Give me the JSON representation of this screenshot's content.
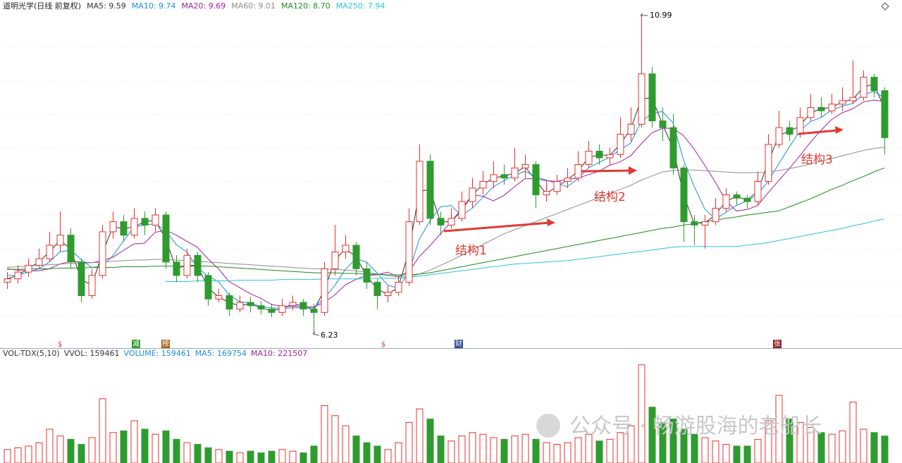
{
  "chart_data": {
    "type": "candlestick",
    "title": "道明光学(日线 前复权)",
    "ylim": [
      6.04,
      11.01
    ],
    "gridlines": [
      6.5,
      7,
      7.5,
      8,
      8.5,
      9,
      9.5,
      10,
      10.5
    ],
    "open": [
      7.0,
      7.05,
      7.15,
      7.25,
      7.35,
      7.55,
      7.7,
      7.3,
      6.8,
      7.1,
      7.75,
      7.9,
      7.7,
      7.95,
      7.85,
      8.0,
      7.3,
      7.1,
      7.4,
      7.1,
      6.75,
      6.8,
      6.6,
      6.7,
      6.65,
      6.6,
      6.55,
      6.65,
      6.7,
      6.6,
      6.55,
      7.2,
      7.45,
      7.55,
      7.2,
      7.0,
      6.8,
      6.85,
      7.0,
      7.9,
      8.8,
      7.95,
      7.85,
      7.95,
      8.2,
      8.4,
      8.5,
      8.6,
      8.55,
      8.7,
      8.75,
      8.3,
      8.35,
      8.5,
      8.55,
      8.75,
      8.95,
      8.85,
      8.9,
      9.2,
      9.35,
      10.1,
      9.4,
      9.3,
      8.7,
      7.9,
      7.85,
      7.9,
      8.1,
      8.3,
      8.25,
      8.2,
      8.5,
      9.05,
      9.3,
      9.2,
      9.45,
      9.6,
      9.55,
      9.65,
      9.7,
      9.75,
      10.05,
      9.85
    ],
    "high": [
      7.15,
      7.25,
      7.35,
      7.5,
      7.75,
      8.05,
      7.8,
      7.35,
      7.2,
      7.85,
      8.05,
      8.0,
      8.1,
      8.05,
      8.1,
      8.05,
      7.4,
      7.5,
      7.45,
      7.15,
      6.9,
      6.85,
      6.8,
      6.78,
      6.72,
      6.68,
      6.75,
      6.8,
      6.75,
      6.68,
      7.3,
      7.85,
      7.7,
      7.6,
      7.3,
      7.05,
      6.95,
      7.1,
      8.1,
      9.05,
      8.9,
      8.05,
      8.1,
      8.35,
      8.55,
      8.65,
      8.8,
      8.75,
      9.0,
      8.9,
      8.8,
      8.5,
      8.6,
      8.7,
      8.95,
      9.1,
      9.05,
      9.0,
      9.45,
      9.6,
      10.99,
      10.2,
      9.6,
      9.5,
      8.75,
      8.0,
      8.0,
      8.25,
      8.4,
      8.35,
      8.3,
      8.65,
      9.2,
      9.55,
      9.4,
      9.6,
      9.8,
      9.75,
      9.8,
      9.9,
      10.3,
      10.15,
      10.1,
      9.9
    ],
    "low": [
      6.9,
      6.98,
      7.08,
      7.2,
      7.3,
      7.45,
      7.2,
      6.7,
      6.75,
      7.05,
      7.65,
      7.6,
      7.65,
      7.7,
      7.75,
      7.2,
      7.0,
      7.05,
      7.0,
      6.65,
      6.7,
      6.5,
      6.55,
      6.55,
      6.52,
      6.48,
      6.5,
      6.58,
      6.5,
      6.23,
      6.5,
      7.1,
      7.35,
      7.1,
      6.9,
      6.6,
      6.7,
      6.8,
      6.95,
      7.85,
      7.85,
      7.7,
      7.8,
      7.9,
      8.1,
      8.3,
      8.4,
      8.45,
      8.5,
      8.55,
      8.1,
      8.2,
      8.3,
      8.4,
      8.5,
      8.7,
      8.75,
      8.75,
      8.85,
      9.1,
      9.3,
      9.3,
      9.1,
      8.6,
      7.6,
      7.55,
      7.5,
      7.85,
      8.05,
      8.15,
      8.1,
      8.15,
      8.45,
      9.0,
      9.1,
      9.15,
      9.4,
      9.45,
      9.5,
      9.55,
      9.65,
      9.7,
      9.75,
      8.9
    ],
    "close": [
      7.05,
      7.15,
      7.25,
      7.35,
      7.55,
      7.7,
      7.3,
      6.8,
      7.1,
      7.75,
      7.9,
      7.7,
      7.95,
      7.85,
      8.0,
      7.3,
      7.1,
      7.4,
      7.1,
      6.75,
      6.8,
      6.6,
      6.7,
      6.65,
      6.6,
      6.55,
      6.65,
      6.7,
      6.6,
      6.55,
      7.2,
      7.45,
      7.55,
      7.2,
      7.0,
      6.8,
      6.85,
      7.0,
      7.9,
      8.8,
      7.95,
      7.85,
      7.95,
      8.2,
      8.4,
      8.5,
      8.6,
      8.55,
      8.7,
      8.75,
      8.3,
      8.35,
      8.5,
      8.55,
      8.75,
      8.95,
      8.85,
      8.9,
      9.2,
      9.35,
      10.1,
      9.4,
      9.3,
      8.7,
      7.9,
      7.85,
      7.9,
      8.1,
      8.3,
      8.25,
      8.2,
      8.5,
      9.05,
      9.3,
      9.2,
      9.45,
      9.6,
      9.55,
      9.65,
      9.7,
      9.75,
      10.05,
      9.85,
      9.15
    ],
    "up_color": "#e8302f",
    "down_color": "#2e9b2e",
    "series": [
      {
        "name": "MA5: 9.59",
        "color": "#333333",
        "values": [
          7.05,
          7.1,
          7.2,
          7.3,
          7.45,
          7.62,
          7.5,
          7.05,
          6.95,
          7.42,
          7.82,
          7.8,
          7.82,
          7.9,
          7.92,
          7.65,
          7.2,
          7.25,
          7.25,
          6.92,
          6.78,
          6.7,
          6.65,
          6.68,
          6.62,
          6.58,
          6.6,
          6.68,
          6.65,
          6.58,
          6.88,
          7.32,
          7.5,
          7.38,
          7.1,
          6.9,
          6.82,
          6.92,
          7.45,
          8.35,
          8.38,
          7.9,
          7.9,
          8.08,
          8.3,
          8.45,
          8.55,
          8.58,
          8.62,
          8.72,
          8.52,
          8.32,
          8.42,
          8.52,
          8.65,
          8.85,
          8.9,
          8.88,
          9.05,
          9.28,
          9.72,
          9.75,
          9.35,
          9.0,
          8.3,
          7.88,
          7.88,
          8.0,
          8.2,
          8.28,
          8.22,
          8.35,
          8.78,
          9.18,
          9.25,
          9.32,
          9.52,
          9.58,
          9.6,
          9.68,
          9.72,
          9.9,
          9.95,
          9.59
        ]
      },
      {
        "name": "MA10: 9.74",
        "color": "#1a8fd6",
        "values": [
          7.1,
          7.1,
          7.15,
          7.2,
          7.3,
          7.45,
          7.48,
          7.34,
          7.22,
          7.24,
          7.39,
          7.61,
          7.82,
          7.85,
          7.87,
          7.77,
          7.56,
          7.45,
          7.22,
          7.09,
          7.01,
          6.81,
          6.71,
          6.69,
          6.64,
          6.62,
          6.61,
          6.62,
          6.62,
          6.62,
          6.76,
          6.95,
          7.19,
          7.35,
          7.3,
          7.14,
          6.96,
          6.91,
          7.14,
          7.64,
          7.91,
          8.12,
          8.14,
          7.99,
          8.1,
          8.26,
          8.42,
          8.51,
          8.59,
          8.65,
          8.57,
          8.52,
          8.47,
          8.42,
          8.54,
          8.7,
          8.78,
          8.86,
          8.97,
          9.07,
          9.39,
          9.51,
          9.54,
          9.37,
          8.82,
          8.43,
          8.09,
          7.94,
          8.04,
          8.14,
          8.21,
          8.31,
          8.5,
          8.76,
          9.01,
          9.25,
          9.39,
          9.45,
          9.56,
          9.62,
          9.66,
          9.79,
          9.84,
          9.74
        ]
      },
      {
        "name": "MA20: 9.69",
        "color": "#a0229e",
        "values": [
          7.2,
          7.18,
          7.17,
          7.17,
          7.2,
          7.27,
          7.31,
          7.3,
          7.29,
          7.32,
          7.37,
          7.47,
          7.57,
          7.58,
          7.74,
          7.78,
          7.7,
          7.61,
          7.52,
          7.35,
          7.2,
          7.01,
          6.92,
          6.83,
          6.76,
          6.67,
          6.64,
          6.64,
          6.64,
          6.63,
          6.7,
          6.81,
          6.96,
          7.04,
          7.1,
          7.11,
          7.15,
          7.08,
          7.16,
          7.38,
          7.54,
          7.72,
          7.9,
          8.06,
          8.3,
          8.28,
          8.21,
          8.29,
          8.42,
          8.54,
          8.54,
          8.51,
          8.5,
          8.53,
          8.55,
          8.6,
          8.65,
          8.74,
          8.79,
          8.88,
          9.06,
          9.22,
          9.29,
          9.29,
          9.18,
          8.98,
          8.74,
          8.49,
          8.21,
          8.06,
          8.08,
          8.14,
          8.33,
          8.51,
          8.69,
          8.88,
          9.08,
          9.26,
          9.42,
          9.52,
          9.58,
          9.68,
          9.71,
          9.69
        ]
      },
      {
        "name": "MA60: 9.01",
        "color": "#8c8c8c",
        "values": [
          7.22,
          7.23,
          7.24,
          7.25,
          7.26,
          7.27,
          7.28,
          7.28,
          7.29,
          7.3,
          7.31,
          7.32,
          7.33,
          7.33,
          7.34,
          7.34,
          7.33,
          7.32,
          7.31,
          7.3,
          7.29,
          7.28,
          7.27,
          7.26,
          7.25,
          7.24,
          7.23,
          7.22,
          7.21,
          7.2,
          7.2,
          7.19,
          7.18,
          7.17,
          7.15,
          7.12,
          7.1,
          7.08,
          7.08,
          7.12,
          7.18,
          7.25,
          7.32,
          7.4,
          7.48,
          7.56,
          7.64,
          7.72,
          7.78,
          7.84,
          7.9,
          7.96,
          8.02,
          8.08,
          8.14,
          8.2,
          8.26,
          8.32,
          8.38,
          8.44,
          8.52,
          8.58,
          8.64,
          8.66,
          8.67,
          8.67,
          8.66,
          8.65,
          8.64,
          8.63,
          8.63,
          8.63,
          8.64,
          8.66,
          8.69,
          8.72,
          8.76,
          8.8,
          8.84,
          8.88,
          8.92,
          8.96,
          8.99,
          9.01
        ]
      },
      {
        "name": "MA120: 8.70",
        "color": "#1f8a1f",
        "values": [
          7.19,
          7.19,
          7.2,
          7.2,
          7.2,
          7.21,
          7.21,
          7.21,
          7.22,
          7.22,
          7.22,
          7.23,
          7.23,
          7.23,
          7.24,
          7.24,
          7.24,
          7.24,
          7.24,
          7.24,
          7.23,
          7.22,
          7.21,
          7.2,
          7.19,
          7.18,
          7.17,
          7.16,
          7.15,
          7.14,
          7.14,
          7.14,
          7.13,
          7.13,
          7.12,
          7.12,
          7.11,
          7.11,
          7.11,
          7.12,
          7.14,
          7.17,
          7.2,
          7.23,
          7.26,
          7.29,
          7.32,
          7.35,
          7.38,
          7.41,
          7.44,
          7.47,
          7.5,
          7.53,
          7.56,
          7.59,
          7.62,
          7.65,
          7.68,
          7.71,
          7.74,
          7.77,
          7.8,
          7.82,
          7.85,
          7.87,
          7.9,
          7.92,
          7.95,
          7.97,
          8.0,
          8.02,
          8.04,
          8.06,
          8.12,
          8.18,
          8.24,
          8.31,
          8.38,
          8.44,
          8.51,
          8.57,
          8.64,
          8.7
        ]
      },
      {
        "name": "MA250: 7.94",
        "color": "#2cc5d8",
        "values": [
          null,
          null,
          null,
          null,
          null,
          null,
          null,
          null,
          null,
          null,
          null,
          null,
          null,
          null,
          null,
          7.01,
          7.01,
          7.01,
          7.02,
          7.02,
          7.02,
          7.02,
          7.03,
          7.03,
          7.03,
          7.03,
          7.04,
          7.04,
          7.04,
          7.04,
          7.05,
          7.05,
          7.05,
          7.05,
          7.05,
          7.06,
          7.06,
          7.06,
          7.07,
          7.09,
          7.11,
          7.13,
          7.15,
          7.17,
          7.19,
          7.21,
          7.23,
          7.25,
          7.27,
          7.28,
          7.29,
          7.3,
          7.31,
          7.32,
          7.34,
          7.36,
          7.38,
          7.4,
          7.42,
          7.44,
          7.46,
          7.48,
          7.5,
          7.52,
          7.53,
          7.53,
          7.53,
          7.53,
          7.53,
          7.53,
          7.55,
          7.57,
          7.59,
          7.62,
          7.65,
          7.68,
          7.71,
          7.74,
          7.77,
          7.8,
          7.84,
          7.87,
          7.91,
          7.94
        ]
      }
    ],
    "annotations": [
      "结构1",
      "结构2",
      "结构3"
    ],
    "events": [
      "$",
      "减",
      "榜",
      "$",
      "财",
      "张"
    ],
    "volume": {
      "header": [
        {
          "text": "VOL-TDX(5,10)",
          "color": "#333333"
        },
        {
          "text": "VVOL: 159461",
          "color": "#333333"
        },
        {
          "text": "VOLUME: 159461",
          "color": "#1a8fd6"
        },
        {
          "text": "MA5: 169754",
          "color": "#1a8fd6"
        },
        {
          "text": "MA10: 221507",
          "color": "#a0229e"
        }
      ],
      "ylim": [
        0,
        600000
      ],
      "values": [
        80000,
        90000,
        100000,
        120000,
        200000,
        160000,
        140000,
        110000,
        150000,
        380000,
        180000,
        190000,
        250000,
        200000,
        170000,
        190000,
        140000,
        120000,
        110000,
        90000,
        80000,
        70000,
        60000,
        70000,
        60000,
        70000,
        80000,
        70000,
        60000,
        100000,
        340000,
        280000,
        220000,
        160000,
        120000,
        100000,
        80000,
        120000,
        240000,
        320000,
        260000,
        160000,
        130000,
        160000,
        180000,
        170000,
        150000,
        140000,
        160000,
        170000,
        140000,
        120000,
        110000,
        120000,
        150000,
        170000,
        130000,
        140000,
        180000,
        220000,
        580000,
        330000,
        240000,
        260000,
        200000,
        170000,
        150000,
        130000,
        110000,
        100000,
        100000,
        140000,
        250000,
        400000,
        260000,
        240000,
        210000,
        180000,
        170000,
        190000,
        360000,
        200000,
        180000,
        159461
      ]
    },
    "watermark": "公众号 · 畅游股海的老船长"
  }
}
